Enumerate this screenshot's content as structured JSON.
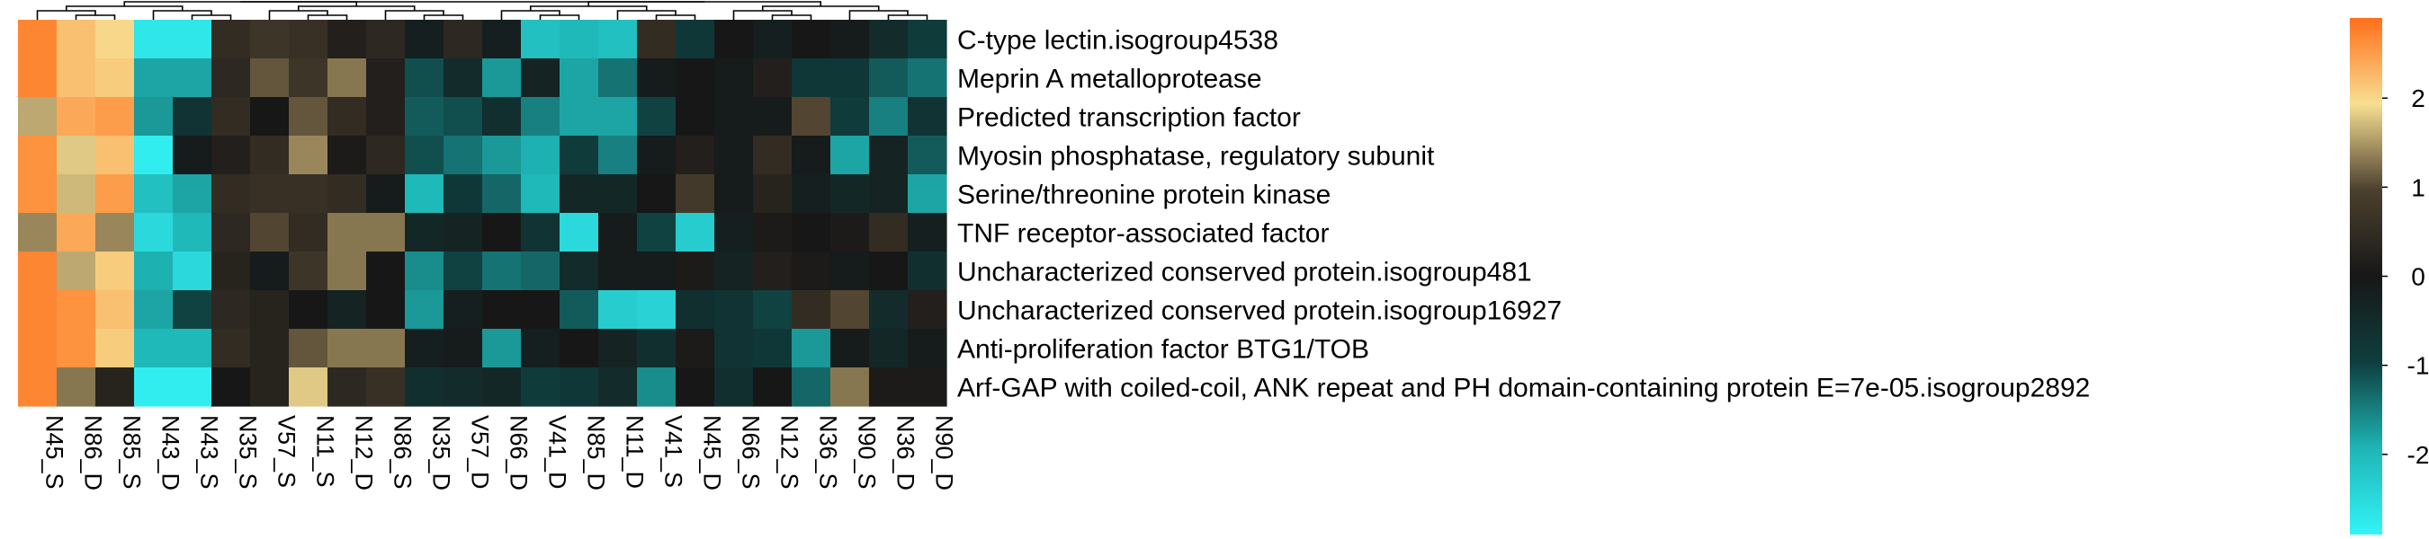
{
  "chart_data": {
    "type": "heatmap",
    "columns": [
      "N45_S",
      "N86_D",
      "N85_S",
      "N43_D",
      "N43_S",
      "N35_S",
      "V57_S",
      "N11_S",
      "N12_D",
      "N86_S",
      "N35_D",
      "V57_D",
      "N66_D",
      "V41_D",
      "N85_D",
      "N11_D",
      "V41_S",
      "N45_D",
      "N66_S",
      "N12_S",
      "N36_S",
      "N90_S",
      "N36_D",
      "N90_D"
    ],
    "rows": [
      "C-type lectin.isogroup4538",
      "Meprin A metalloprotease",
      "Predicted transcription factor",
      "Myosin phosphatase, regulatory subunit",
      "Serine/threonine protein kinase",
      "TNF receptor-associated factor",
      "Uncharacterized conserved protein.isogroup481",
      "Uncharacterized conserved protein.isogroup16927",
      "Anti-proliferation factor BTG1/TOB",
      "Arf-GAP with coiled-coil, ANK repeat and PH domain-containing protein E=7e-05.isogroup2892"
    ],
    "values": [
      [
        2.7,
        2.2,
        2.0,
        -2.7,
        -2.7,
        0.5,
        0.7,
        0.6,
        0.2,
        0.4,
        -0.2,
        0.4,
        -0.2,
        -2.1,
        -2.0,
        -2.1,
        0.5,
        -0.8,
        0.0,
        -0.2,
        0.0,
        -0.1,
        -0.5,
        -0.9
      ],
      [
        2.7,
        2.2,
        2.1,
        -1.8,
        -1.8,
        0.4,
        1.1,
        0.7,
        1.3,
        0.2,
        -1.1,
        -0.5,
        -1.7,
        -0.3,
        -1.8,
        -1.4,
        -0.1,
        0.0,
        -0.1,
        0.2,
        -0.8,
        -0.8,
        -1.2,
        -1.4
      ],
      [
        1.6,
        2.4,
        2.5,
        -1.7,
        -0.7,
        0.5,
        0.0,
        1.1,
        0.5,
        0.2,
        -1.2,
        -1.1,
        -0.6,
        -1.5,
        -1.8,
        -1.8,
        -1.0,
        0.0,
        -0.1,
        -0.1,
        1.0,
        -0.9,
        -1.5,
        -0.7
      ],
      [
        2.6,
        1.8,
        2.2,
        -2.8,
        -0.1,
        0.2,
        0.5,
        1.4,
        0.1,
        0.4,
        -1.1,
        -1.4,
        -1.7,
        -1.9,
        -0.9,
        -1.5,
        -0.1,
        0.2,
        -0.1,
        0.5,
        -0.1,
        -1.8,
        -0.3,
        -1.2
      ],
      [
        2.6,
        1.7,
        2.5,
        -2.1,
        -1.8,
        0.5,
        0.6,
        0.6,
        0.5,
        -0.1,
        -2.0,
        -0.8,
        -1.3,
        -2.0,
        -0.4,
        -0.4,
        0.0,
        0.8,
        -0.1,
        0.3,
        -0.2,
        -0.4,
        -0.3,
        -1.8
      ],
      [
        1.4,
        2.4,
        1.4,
        -2.5,
        -2.0,
        0.4,
        1.0,
        0.5,
        1.3,
        1.3,
        -0.4,
        -0.3,
        0.0,
        -0.7,
        -2.5,
        -0.1,
        -1.0,
        -2.3,
        -0.2,
        0.1,
        0.0,
        0.1,
        0.5,
        -0.2
      ],
      [
        2.7,
        1.6,
        2.1,
        -1.9,
        -2.5,
        0.3,
        -0.1,
        0.7,
        1.3,
        0.0,
        -1.6,
        -1.0,
        -1.4,
        -1.3,
        -0.5,
        -0.1,
        -0.1,
        0.1,
        -0.3,
        0.2,
        0.1,
        -0.1,
        0.0,
        -0.6
      ],
      [
        2.7,
        2.6,
        2.2,
        -1.8,
        -1.0,
        0.4,
        0.3,
        0.0,
        -0.3,
        0.0,
        -1.7,
        -0.2,
        0.0,
        0.0,
        -1.2,
        -2.3,
        -2.4,
        -0.6,
        -0.7,
        -1.0,
        0.5,
        1.0,
        -0.5,
        0.2
      ],
      [
        2.7,
        2.6,
        2.1,
        -2.0,
        -2.0,
        0.5,
        0.3,
        1.1,
        1.3,
        1.3,
        -0.2,
        -0.1,
        -1.7,
        -0.2,
        0.0,
        -0.3,
        -0.6,
        0.1,
        -0.7,
        -0.8,
        -1.7,
        -0.1,
        -0.4,
        -0.1
      ],
      [
        2.7,
        1.3,
        0.3,
        -2.8,
        -2.8,
        0.0,
        0.3,
        1.8,
        0.4,
        0.6,
        -0.6,
        -0.5,
        -0.4,
        -0.9,
        -0.8,
        -0.5,
        -1.6,
        0.0,
        -0.6,
        0.0,
        -1.3,
        1.3,
        0.1,
        0.1
      ]
    ],
    "colorbar": {
      "ticks": [
        2,
        1,
        0,
        -1,
        -2
      ],
      "range": [
        -2.9,
        2.9
      ],
      "colors": [
        "#33f3f7",
        "#1fb5b5",
        "#0f3e3e",
        "#171717",
        "#4c402e",
        "#f7df92",
        "#ff6f1a"
      ]
    },
    "dendrogram": "top"
  }
}
